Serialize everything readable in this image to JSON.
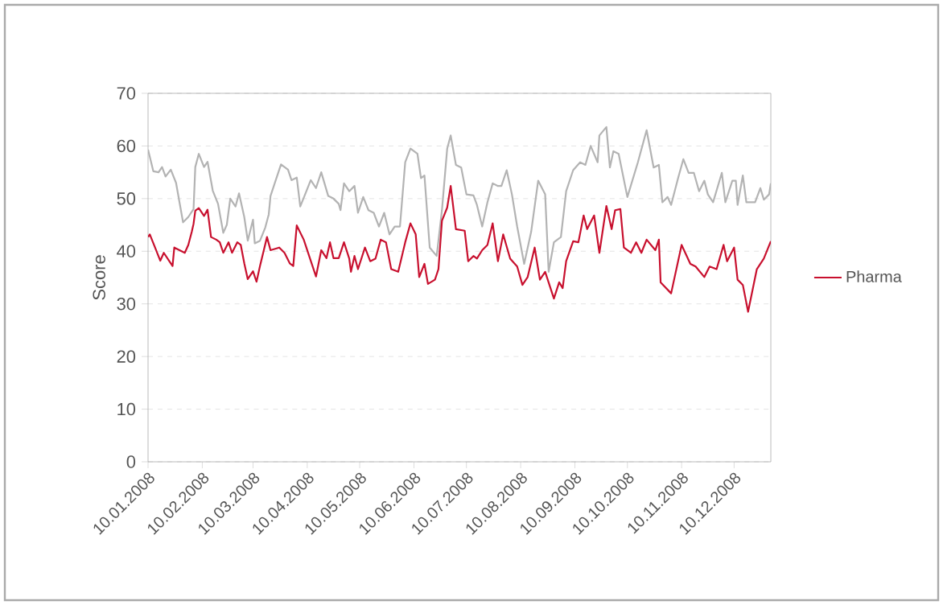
{
  "chart_data": {
    "type": "line",
    "ylabel": "Score",
    "legend": "right",
    "grid": "y",
    "line_style": "solid",
    "marker": "none",
    "xlim": [
      "2008-01-10",
      "2008-12-31"
    ],
    "ylim": [
      0,
      70
    ],
    "yticks": [
      0,
      10,
      20,
      30,
      40,
      50,
      60,
      70
    ],
    "xticks": [
      {
        "value": "2008-01-10",
        "label": "10.01.2008"
      },
      {
        "value": "2008-02-10",
        "label": "10.02.2008"
      },
      {
        "value": "2008-03-10",
        "label": "10.03.2008"
      },
      {
        "value": "2008-04-10",
        "label": "10.04.2008"
      },
      {
        "value": "2008-05-10",
        "label": "10.05.2008"
      },
      {
        "value": "2008-06-10",
        "label": "10.06.2008"
      },
      {
        "value": "2008-07-10",
        "label": "10.07.2008"
      },
      {
        "value": "2008-08-10",
        "label": "10.08.2008"
      },
      {
        "value": "2008-09-10",
        "label": "10.09.2008"
      },
      {
        "value": "2008-10-10",
        "label": "10.10.2008"
      },
      {
        "value": "2008-11-10",
        "label": "10.11.2008"
      },
      {
        "value": "2008-12-10",
        "label": "10.12.2008"
      }
    ],
    "series": [
      {
        "color": "#b3b3b3",
        "x": [
          "2008-01-10",
          "2008-01-13",
          "2008-01-16",
          "2008-01-18",
          "2008-01-20",
          "2008-01-23",
          "2008-01-26",
          "2008-01-30",
          "2008-02-02",
          "2008-02-05",
          "2008-02-06",
          "2008-02-08",
          "2008-02-11",
          "2008-02-13",
          "2008-02-16",
          "2008-02-19",
          "2008-02-22",
          "2008-02-24",
          "2008-02-26",
          "2008-02-29",
          "2008-03-02",
          "2008-03-05",
          "2008-03-07",
          "2008-03-10",
          "2008-03-11",
          "2008-03-14",
          "2008-03-17",
          "2008-03-19",
          "2008-03-20",
          "2008-03-23",
          "2008-03-26",
          "2008-03-30",
          "2008-04-01",
          "2008-04-04",
          "2008-04-06",
          "2008-04-09",
          "2008-04-12",
          "2008-04-15",
          "2008-04-18",
          "2008-04-22",
          "2008-04-25",
          "2008-04-28",
          "2008-04-29",
          "2008-05-01",
          "2008-05-04",
          "2008-05-07",
          "2008-05-09",
          "2008-05-12",
          "2008-05-15",
          "2008-05-18",
          "2008-05-21",
          "2008-05-24",
          "2008-05-27",
          "2008-05-30",
          "2008-06-02",
          "2008-06-05",
          "2008-06-08",
          "2008-06-12",
          "2008-06-14",
          "2008-06-16",
          "2008-06-19",
          "2008-06-23",
          "2008-06-26",
          "2008-06-29",
          "2008-07-01",
          "2008-07-04",
          "2008-07-07",
          "2008-07-10",
          "2008-07-14",
          "2008-07-16",
          "2008-07-19",
          "2008-07-22",
          "2008-07-25",
          "2008-07-28",
          "2008-07-30",
          "2008-08-02",
          "2008-08-05",
          "2008-08-08",
          "2008-08-12",
          "2008-08-16",
          "2008-08-20",
          "2008-08-24",
          "2008-08-26",
          "2008-08-29",
          "2008-09-02",
          "2008-09-05",
          "2008-09-09",
          "2008-09-13",
          "2008-09-16",
          "2008-09-19",
          "2008-09-23",
          "2008-09-24",
          "2008-09-28",
          "2008-09-30",
          "2008-10-02",
          "2008-10-05",
          "2008-10-10",
          "2008-10-16",
          "2008-10-21",
          "2008-10-25",
          "2008-10-28",
          "2008-10-30",
          "2008-11-02",
          "2008-11-04",
          "2008-11-08",
          "2008-11-11",
          "2008-11-14",
          "2008-11-17",
          "2008-11-20",
          "2008-11-23",
          "2008-11-25",
          "2008-11-28",
          "2008-12-03",
          "2008-12-05",
          "2008-12-09",
          "2008-12-11",
          "2008-12-12",
          "2008-12-15",
          "2008-12-17",
          "2008-12-22",
          "2008-12-25",
          "2008-12-27",
          "2008-12-30",
          "2008-12-31"
        ],
        "values": [
          59.3,
          55.2,
          55,
          56,
          54.2,
          55.5,
          53,
          45.5,
          46.5,
          48,
          56,
          58.5,
          56,
          57,
          51.5,
          49,
          43.5,
          45,
          50,
          48.5,
          51,
          46.5,
          42,
          46,
          41.5,
          42,
          44.5,
          47,
          50.5,
          53.5,
          56.5,
          55.5,
          53.5,
          54,
          48.5,
          51,
          53.5,
          52,
          55,
          50.5,
          50,
          49,
          47.8,
          52.9,
          51.4,
          52.4,
          47.3,
          50.3,
          47.8,
          47.3,
          44.7,
          47.3,
          43.2,
          44.7,
          44.7,
          56.9,
          59.5,
          58.5,
          53.9,
          54.4,
          40.7,
          39.1,
          47.8,
          59.5,
          62,
          56.4,
          55.9,
          50.8,
          50.6,
          48.8,
          44.7,
          49.3,
          52.9,
          52.4,
          52.4,
          55.4,
          50.8,
          44.7,
          37.6,
          43.7,
          53.4,
          50.8,
          36.1,
          41.7,
          42.7,
          51.4,
          55.4,
          56.9,
          56.4,
          60,
          56.9,
          62,
          63.6,
          55.9,
          59,
          58.5,
          50.3,
          56.9,
          63,
          55.9,
          56.4,
          49.3,
          50.3,
          48.8,
          53.9,
          57.5,
          54.9,
          54.9,
          51.4,
          53.4,
          50.8,
          49.3,
          54.9,
          49.3,
          53.4,
          53.4,
          48.8,
          54.4,
          49.3,
          49.3,
          52,
          49.8,
          50.8,
          52.9
        ]
      },
      {
        "name": "Pharma",
        "color": "#c8102e",
        "x": [
          "2008-01-10",
          "2008-01-11",
          "2008-01-14",
          "2008-01-17",
          "2008-01-19",
          "2008-01-22",
          "2008-01-24",
          "2008-01-25",
          "2008-01-28",
          "2008-01-31",
          "2008-02-02",
          "2008-02-04",
          "2008-02-05",
          "2008-02-06",
          "2008-02-08",
          "2008-02-11",
          "2008-02-13",
          "2008-02-15",
          "2008-02-18",
          "2008-02-20",
          "2008-02-22",
          "2008-02-25",
          "2008-02-27",
          "2008-03-01",
          "2008-03-03",
          "2008-03-05",
          "2008-03-07",
          "2008-03-10",
          "2008-03-12",
          "2008-03-14",
          "2008-03-18",
          "2008-03-20",
          "2008-03-25",
          "2008-03-28",
          "2008-03-31",
          "2008-04-02",
          "2008-04-04",
          "2008-04-08",
          "2008-04-12",
          "2008-04-15",
          "2008-04-18",
          "2008-04-21",
          "2008-04-23",
          "2008-04-25",
          "2008-04-28",
          "2008-05-01",
          "2008-05-04",
          "2008-05-05",
          "2008-05-07",
          "2008-05-09",
          "2008-05-13",
          "2008-05-16",
          "2008-05-19",
          "2008-05-22",
          "2008-05-25",
          "2008-05-28",
          "2008-06-01",
          "2008-06-05",
          "2008-06-08",
          "2008-06-11",
          "2008-06-13",
          "2008-06-16",
          "2008-06-18",
          "2008-06-22",
          "2008-06-24",
          "2008-06-26",
          "2008-06-29",
          "2008-07-01",
          "2008-07-04",
          "2008-07-09",
          "2008-07-11",
          "2008-07-14",
          "2008-07-16",
          "2008-07-19",
          "2008-07-22",
          "2008-07-25",
          "2008-07-28",
          "2008-07-31",
          "2008-08-04",
          "2008-08-08",
          "2008-08-11",
          "2008-08-14",
          "2008-08-18",
          "2008-08-21",
          "2008-08-24",
          "2008-08-29",
          "2008-09-01",
          "2008-09-03",
          "2008-09-05",
          "2008-09-09",
          "2008-09-12",
          "2008-09-15",
          "2008-09-17",
          "2008-09-21",
          "2008-09-24",
          "2008-09-28",
          "2008-10-01",
          "2008-10-03",
          "2008-10-06",
          "2008-10-08",
          "2008-10-12",
          "2008-10-15",
          "2008-10-18",
          "2008-10-21",
          "2008-10-26",
          "2008-10-28",
          "2008-10-29",
          "2008-11-04",
          "2008-11-10",
          "2008-11-15",
          "2008-11-18",
          "2008-11-23",
          "2008-11-26",
          "2008-11-30",
          "2008-12-04",
          "2008-12-06",
          "2008-12-10",
          "2008-12-12",
          "2008-12-15",
          "2008-12-18",
          "2008-12-23",
          "2008-12-27",
          "2008-12-31"
        ],
        "values": [
          42.7,
          43.2,
          40.7,
          38.2,
          39.7,
          38.2,
          37.2,
          40.7,
          40.2,
          39.7,
          41.2,
          43.7,
          45.2,
          47.7,
          48.2,
          46.7,
          47.9,
          42.7,
          42.2,
          41.7,
          39.7,
          41.7,
          39.7,
          41.7,
          41.2,
          37.7,
          34.7,
          36.2,
          34.2,
          37.2,
          42.7,
          40.2,
          40.7,
          39.7,
          37.7,
          37.2,
          44.9,
          42.2,
          38.2,
          35.2,
          40.2,
          38.7,
          41.7,
          38.7,
          38.7,
          41.7,
          38.6,
          36.1,
          39.1,
          36.6,
          40.7,
          38.1,
          38.6,
          42.2,
          41.7,
          36.6,
          36.1,
          41.7,
          45.3,
          43.2,
          35.1,
          37.6,
          33.8,
          34.6,
          36.6,
          45.8,
          48.3,
          52.4,
          44.2,
          43.9,
          38.1,
          39.1,
          38.6,
          40.2,
          41.2,
          45.3,
          38.1,
          43.2,
          38.6,
          37.1,
          33.6,
          35.1,
          40.7,
          34.6,
          36.1,
          31,
          34.1,
          33,
          38.1,
          41.9,
          41.7,
          46.8,
          44.2,
          46.8,
          39.7,
          48.6,
          44.2,
          47.8,
          48,
          40.7,
          39.7,
          41.7,
          39.7,
          42.2,
          40.2,
          42.2,
          34.1,
          32,
          41.2,
          37.6,
          37.1,
          35.1,
          37.1,
          36.6,
          41.2,
          38.1,
          40.7,
          34.6,
          33.6,
          28.5,
          36.6,
          38.6,
          41.9
        ]
      }
    ]
  }
}
